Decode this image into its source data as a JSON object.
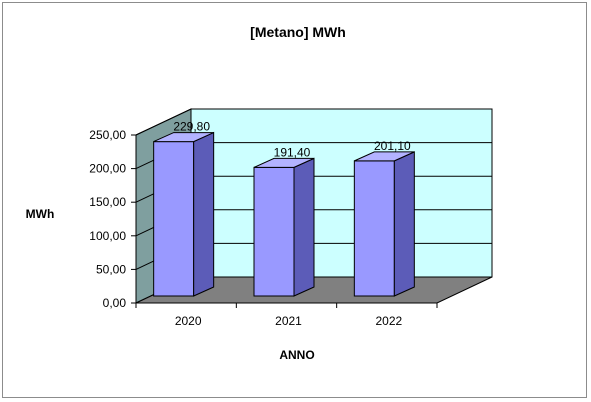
{
  "chart_data": {
    "type": "bar",
    "title": "[Metano] MWh",
    "xlabel": "ANNO",
    "ylabel": "MWh",
    "categories": [
      "2020",
      "2021",
      "2022"
    ],
    "values": [
      229.8,
      191.4,
      201.1
    ],
    "data_labels": [
      "229,80",
      "191,40",
      "201,10"
    ],
    "ylim": [
      0,
      250
    ],
    "yticks": [
      "0,00",
      "50,00",
      "100,00",
      "150,00",
      "200,00",
      "250,00"
    ],
    "ytick_values": [
      0,
      50,
      100,
      150,
      200,
      250
    ],
    "grid": true,
    "style": "3d-column",
    "colors": {
      "bar_front": "#9999ff",
      "bar_side": "#5c5cb8",
      "bar_top": "#b3b3ff",
      "back_wall": "#ccffff",
      "side_wall": "#7f9f9f",
      "floor": "#808080"
    }
  }
}
